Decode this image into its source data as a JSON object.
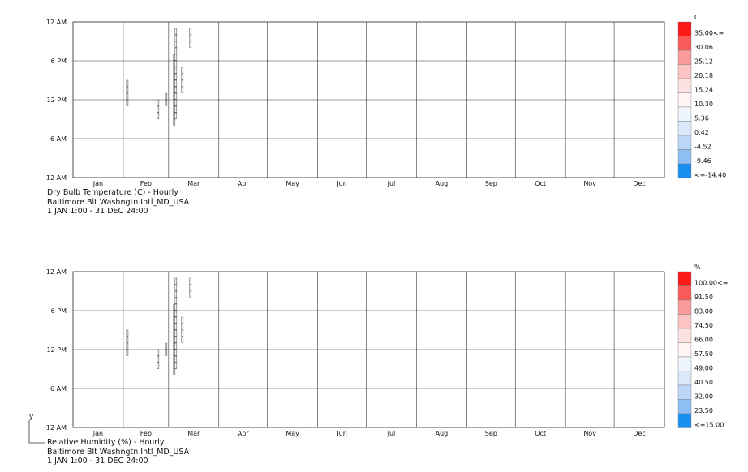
{
  "panels": [
    {
      "unit": "C",
      "caption": [
        "Dry Bulb Temperature (C) - Hourly",
        "Baltimore Blt Washngtn Intl_MD_USA",
        "1 JAN 1:00 - 31 DEC 24:00"
      ],
      "legend": [
        {
          "label": "35.00<=",
          "color": "#ff1a1a"
        },
        {
          "label": "30.06",
          "color": "#fb5a5a"
        },
        {
          "label": "25.12",
          "color": "#fb9a9a"
        },
        {
          "label": "20.18",
          "color": "#fdc4c4"
        },
        {
          "label": "15.24",
          "color": "#fee1e1"
        },
        {
          "label": "10.30",
          "color": "#fff3f3"
        },
        {
          "label": "5.36",
          "color": "#eef5fe"
        },
        {
          "label": "0.42",
          "color": "#dce9fb"
        },
        {
          "label": "-4.52",
          "color": "#bcd7f8"
        },
        {
          "label": "-9.46",
          "color": "#8dbff5"
        },
        {
          "label": "<=-14.40",
          "color": "#1a8ff2"
        }
      ]
    },
    {
      "unit": "%",
      "caption": [
        "Relative Humidity (%) - Hourly",
        "Baltimore Blt Washngtn Intl_MD_USA",
        "1 JAN 1:00 - 31 DEC 24:00"
      ],
      "legend": [
        {
          "label": "100.00<=",
          "color": "#ff1a1a"
        },
        {
          "label": "91.50",
          "color": "#fb5a5a"
        },
        {
          "label": "83.00",
          "color": "#fb9a9a"
        },
        {
          "label": "74.50",
          "color": "#fdc4c4"
        },
        {
          "label": "66.00",
          "color": "#fee1e1"
        },
        {
          "label": "57.50",
          "color": "#fff3f3"
        },
        {
          "label": "49.00",
          "color": "#eef5fe"
        },
        {
          "label": "40.50",
          "color": "#dce9fb"
        },
        {
          "label": "32.00",
          "color": "#bcd7f8"
        },
        {
          "label": "23.50",
          "color": "#8dbff5"
        },
        {
          "label": "<=15.00",
          "color": "#1a8ff2"
        }
      ]
    }
  ],
  "corner_label": "y",
  "chart_data": [
    {
      "type": "heatmap",
      "title": "Dry Bulb Temperature (C) - Hourly",
      "subtitle": "Baltimore Blt Washngtn Intl_MD_USA",
      "period": "1 JAN 1:00 - 31 DEC 24:00",
      "x_categories": [
        "Jan",
        "Feb",
        "Mar",
        "Apr",
        "May",
        "Jun",
        "Jul",
        "Aug",
        "Sep",
        "Oct",
        "Nov",
        "Dec"
      ],
      "y_ticks": [
        "12 AM",
        "6 PM",
        "12 PM",
        "6 AM",
        "12 AM"
      ],
      "color_scale": {
        "min": -14.4,
        "max": 35.0,
        "unit": "C"
      },
      "cell_color": "#ffffff",
      "cells": [
        {
          "day": 33,
          "hours": [
            [
              11,
              15
            ]
          ]
        },
        {
          "day": 52,
          "hours": [
            [
              9,
              12
            ]
          ]
        },
        {
          "day": 57,
          "hours": [
            [
              11,
              13
            ]
          ]
        },
        {
          "day": 62,
          "hours": [
            [
              8,
              19
            ]
          ]
        },
        {
          "day": 63,
          "hours": [
            [
              9,
              23
            ]
          ]
        },
        {
          "day": 67,
          "hours": [
            [
              13,
              17
            ]
          ]
        },
        {
          "day": 72,
          "hours": [
            [
              20,
              23
            ]
          ]
        }
      ]
    },
    {
      "type": "heatmap",
      "title": "Relative Humidity (%) - Hourly",
      "subtitle": "Baltimore Blt Washngtn Intl_MD_USA",
      "period": "1 JAN 1:00 - 31 DEC 24:00",
      "x_categories": [
        "Jan",
        "Feb",
        "Mar",
        "Apr",
        "May",
        "Jun",
        "Jul",
        "Aug",
        "Sep",
        "Oct",
        "Nov",
        "Dec"
      ],
      "y_ticks": [
        "12 AM",
        "6 PM",
        "12 PM",
        "6 AM",
        "12 AM"
      ],
      "color_scale": {
        "min": 15.0,
        "max": 100.0,
        "unit": "%"
      },
      "cell_color": "#ffffff",
      "cell_color_dry": "#3a72b8",
      "cells": [
        {
          "day": 33,
          "hours": [
            [
              11,
              15
            ]
          ]
        },
        {
          "day": 52,
          "hours": [
            [
              9,
              12
            ]
          ]
        },
        {
          "day": 57,
          "hours": [
            [
              11,
              13
            ]
          ]
        },
        {
          "day": 62,
          "hours": [
            [
              8,
              19
            ]
          ]
        },
        {
          "day": 63,
          "hours": [
            [
              9,
              23
            ]
          ]
        },
        {
          "day": 67,
          "hours": [
            [
              13,
              17
            ]
          ]
        },
        {
          "day": 72,
          "hours": [
            [
              20,
              23
            ]
          ]
        }
      ]
    }
  ]
}
